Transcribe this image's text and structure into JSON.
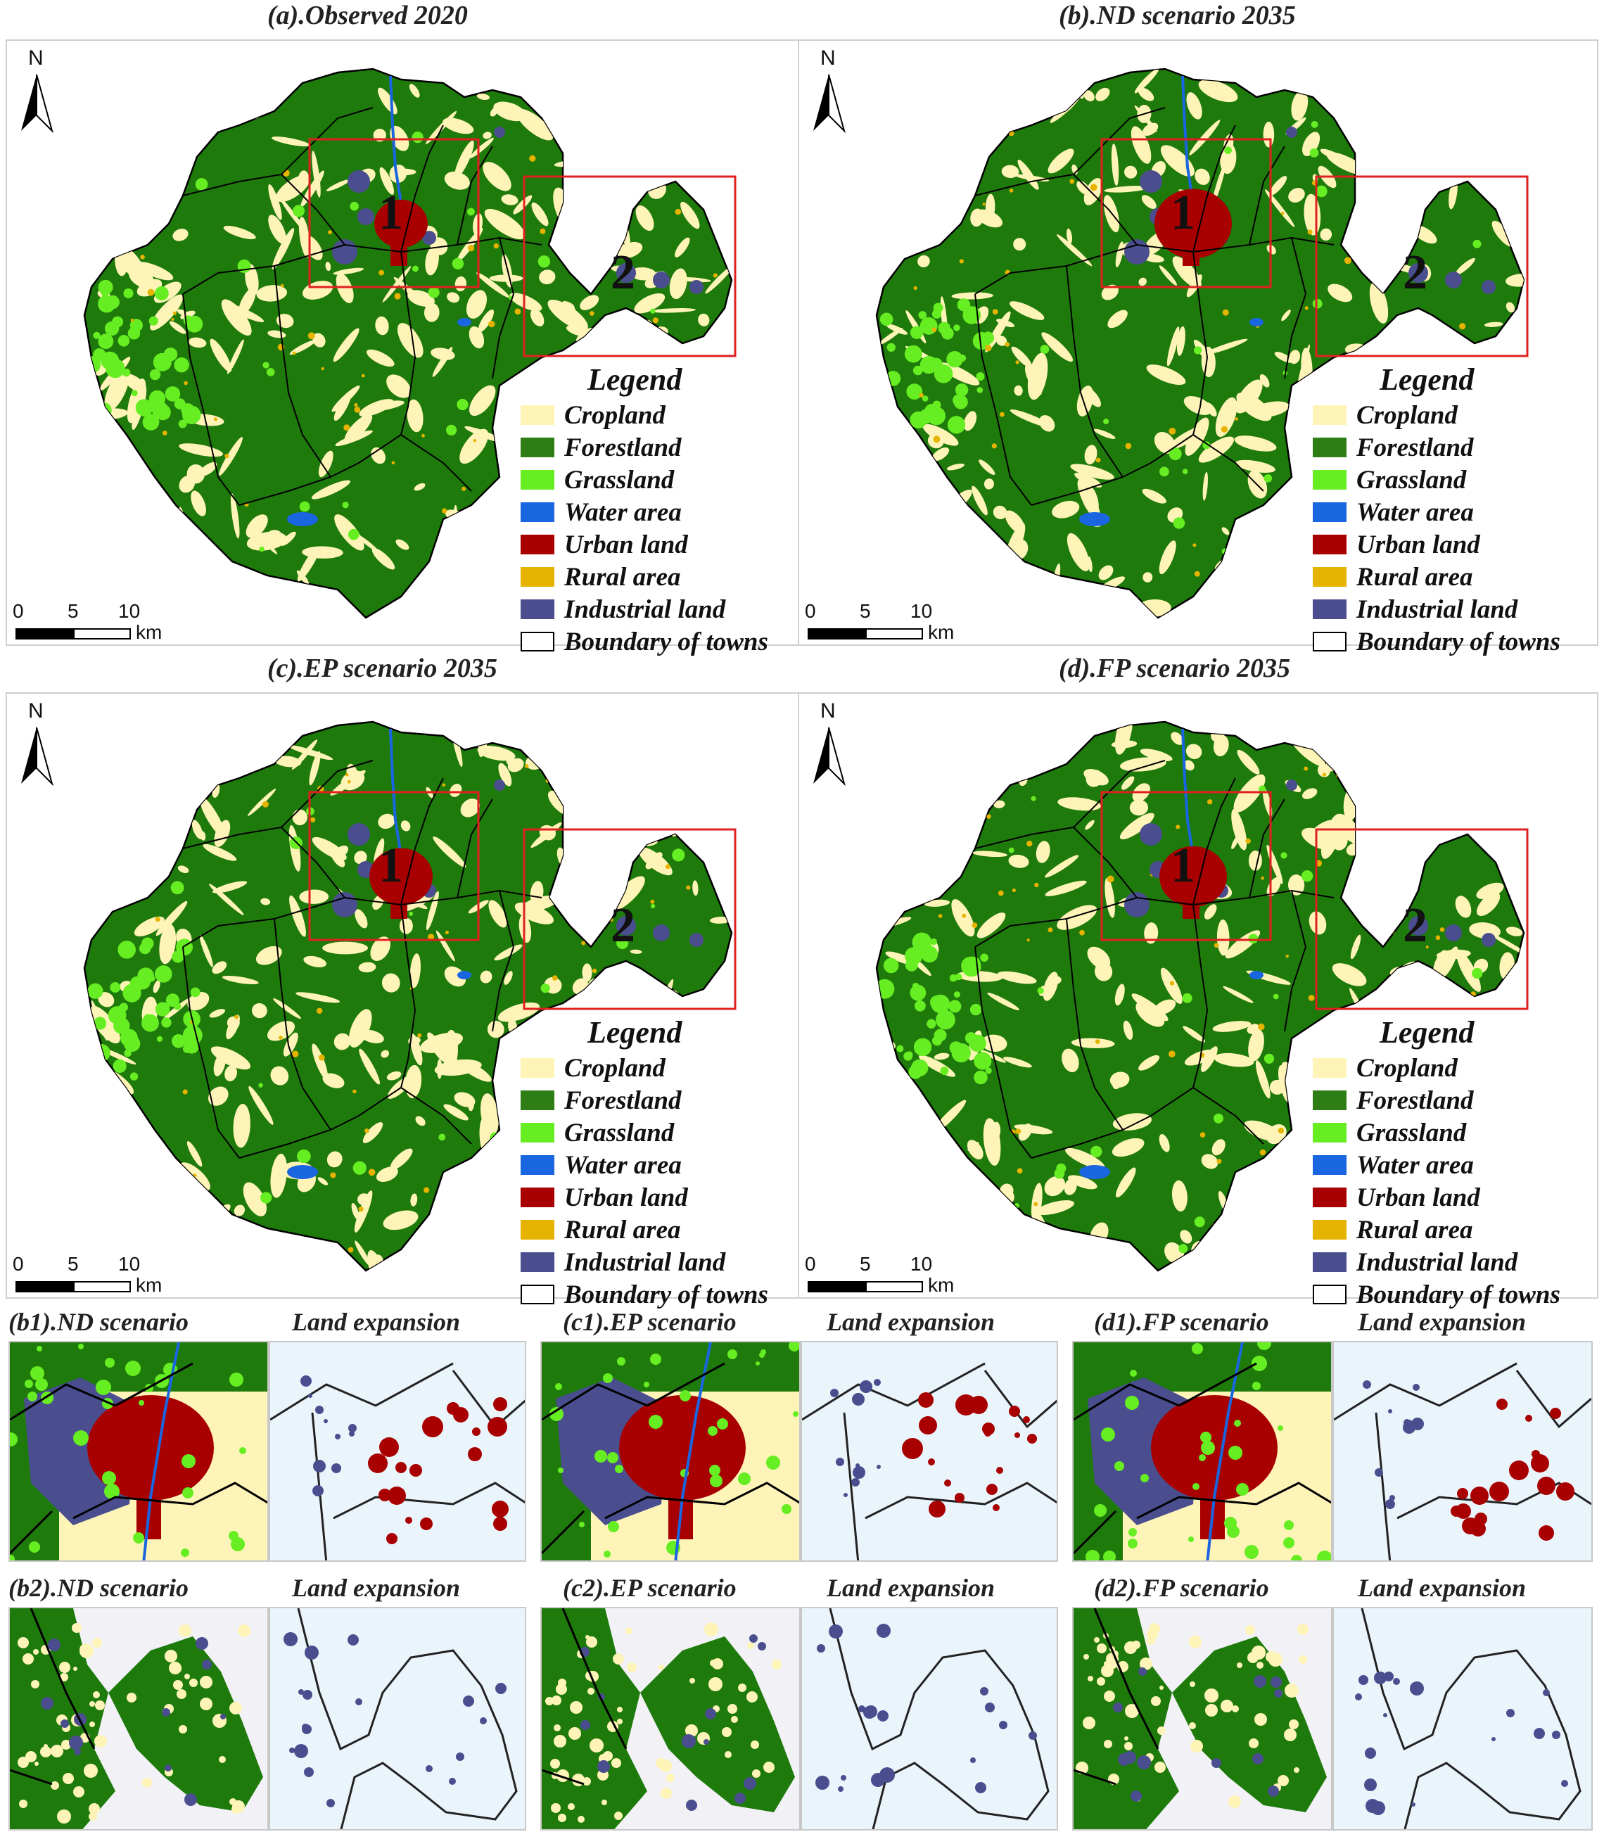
{
  "panels": [
    {
      "id": "a",
      "title": "(a).Observed 2020"
    },
    {
      "id": "b",
      "title": "(b).ND scenario 2035"
    },
    {
      "id": "c",
      "title": "(c).EP scenario 2035"
    },
    {
      "id": "d",
      "title": "(d).FP scenario 2035"
    }
  ],
  "north_label": "N",
  "scale": {
    "ticks": [
      "0",
      "5",
      "10"
    ],
    "unit": "km"
  },
  "zones": [
    "1",
    "2"
  ],
  "legend": {
    "title": "Legend",
    "items": [
      {
        "label": "Cropland",
        "color": "#fff4b8"
      },
      {
        "label": "Forestland",
        "color": "#2e7d15"
      },
      {
        "label": "Grassland",
        "color": "#66ee22"
      },
      {
        "label": "Water area",
        "color": "#1a66e0"
      },
      {
        "label": "Urban land",
        "color": "#a80000"
      },
      {
        "label": "Rural area",
        "color": "#e6b400"
      },
      {
        "label": "Industrial land",
        "color": "#4a4e8f"
      },
      {
        "label": "Boundary of towns",
        "color": "#ffffff"
      }
    ]
  },
  "detail_rows": [
    [
      {
        "title": "(b1).ND scenario",
        "expansion_title": "Land expansion"
      },
      {
        "title": "(c1).EP scenario",
        "expansion_title": "Land expansion"
      },
      {
        "title": "(d1).FP scenario",
        "expansion_title": "Land expansion"
      }
    ],
    [
      {
        "title": "(b2).ND scenario",
        "expansion_title": "Land expansion"
      },
      {
        "title": "(c2).EP scenario",
        "expansion_title": "Land expansion"
      },
      {
        "title": "(d2).FP scenario",
        "expansion_title": "Land expansion"
      }
    ]
  ],
  "colors": {
    "forest": "#1f7a0c",
    "crop": "#fff4b8",
    "grass": "#66ee22",
    "water": "#1a66e0",
    "urban": "#a80000",
    "rural": "#e6b400",
    "industrial": "#4a4e8f",
    "expansion_bg": "#eaf4fb",
    "zone_box": "#e02020"
  }
}
